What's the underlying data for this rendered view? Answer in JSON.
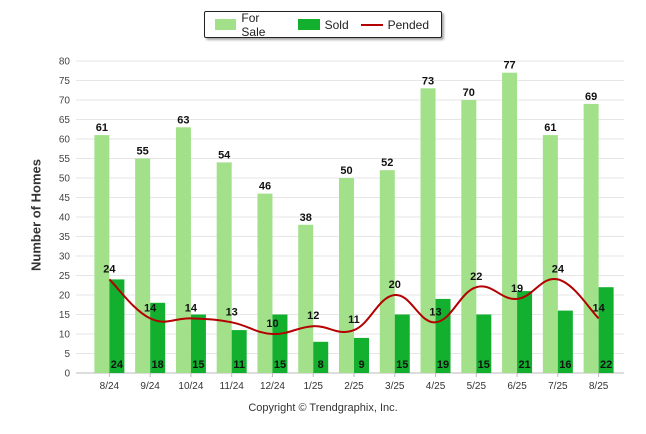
{
  "chart_data": {
    "type": "bar",
    "categories": [
      "8/24",
      "9/24",
      "10/24",
      "11/24",
      "12/24",
      "1/25",
      "2/25",
      "3/25",
      "4/25",
      "5/25",
      "6/25",
      "7/25",
      "8/25"
    ],
    "series": [
      {
        "name": "For Sale",
        "type": "bar",
        "color": "#a2e08a",
        "values": [
          61,
          55,
          63,
          54,
          46,
          38,
          50,
          52,
          73,
          70,
          77,
          61,
          69
        ]
      },
      {
        "name": "Sold",
        "type": "bar",
        "color": "#12b02e",
        "values": [
          24,
          18,
          15,
          11,
          15,
          8,
          9,
          15,
          19,
          15,
          21,
          16,
          22
        ]
      },
      {
        "name": "Pended",
        "type": "line",
        "color": "#b40000",
        "values": [
          24,
          14,
          14,
          13,
          10,
          12,
          11,
          20,
          13,
          22,
          19,
          24,
          14
        ]
      }
    ],
    "ylabel": "Number of Homes",
    "ylim": [
      0,
      80
    ],
    "yticks": [
      0,
      5,
      10,
      15,
      20,
      25,
      30,
      35,
      40,
      45,
      50,
      55,
      60,
      65,
      70,
      75,
      80
    ],
    "grid": true,
    "legend": "top-center"
  },
  "legend": {
    "for_sale": "For Sale",
    "sold": "Sold",
    "pended": "Pended"
  },
  "copyright": "Copyright © Trendgraphix, Inc."
}
